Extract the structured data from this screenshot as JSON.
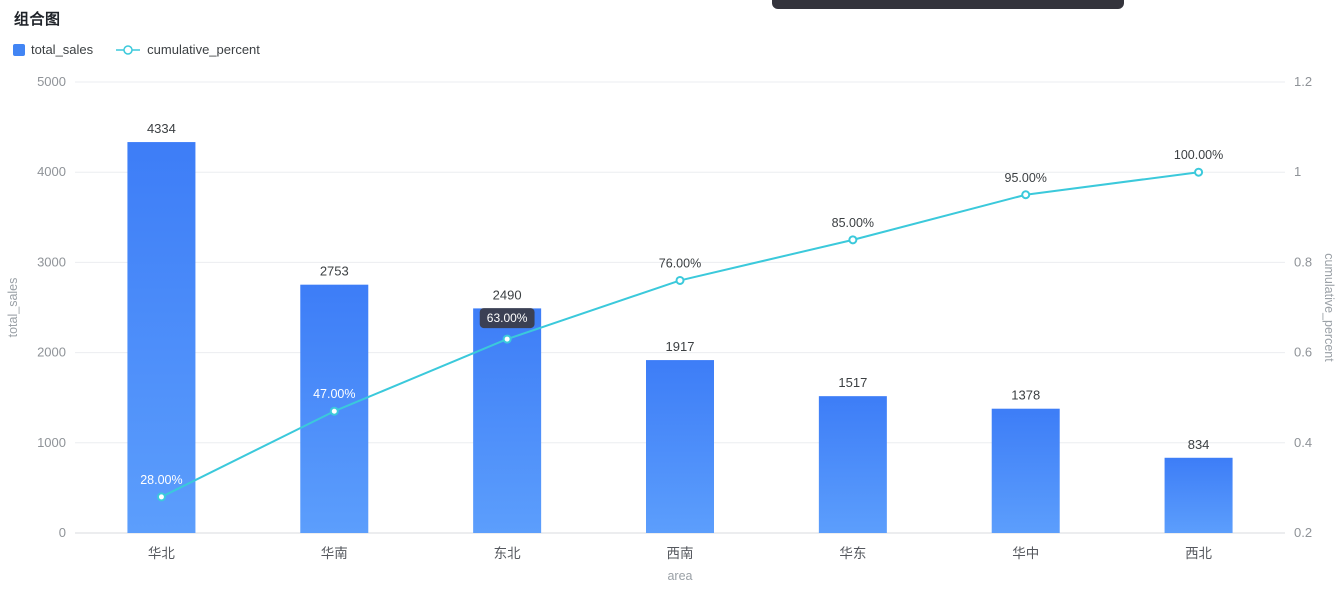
{
  "header": {
    "title": "组合图"
  },
  "legend": {
    "items": [
      {
        "label": "total_sales",
        "type": "bar",
        "color": "#4285F4"
      },
      {
        "label": "cumulative_percent",
        "type": "line",
        "color": "#3BC9DB"
      }
    ]
  },
  "chart_data": {
    "type": "combo-pareto (bar + line)",
    "categories": [
      "华北",
      "华南",
      "东北",
      "西南",
      "华东",
      "华中",
      "西北"
    ],
    "series": [
      {
        "name": "total_sales",
        "type": "bar",
        "y_axis": "left",
        "values": [
          4334,
          2753,
          2490,
          1917,
          1517,
          1378,
          834
        ],
        "value_labels": [
          "4334",
          "2753",
          "2490",
          "1917",
          "1517",
          "1378",
          "834"
        ],
        "bar_color_top": "#3D7DF7",
        "bar_color_bottom": "#5C9EFC"
      },
      {
        "name": "cumulative_percent",
        "type": "line",
        "y_axis": "right",
        "values": [
          0.28,
          0.47,
          0.63,
          0.76,
          0.85,
          0.95,
          1.0
        ],
        "point_labels": [
          "28.00%",
          "47.00%",
          "63.00%",
          "76.00%",
          "85.00%",
          "95.00%",
          "100.00%"
        ],
        "label_styles": [
          "white",
          "white",
          "pill",
          "dark",
          "dark",
          "dark",
          "dark"
        ],
        "line_color": "#3BC9DB"
      }
    ],
    "x_axis": {
      "name": "area"
    },
    "left_axis": {
      "name": "total_sales",
      "min": 0,
      "max": 5000,
      "ticks": [
        "0",
        "1000",
        "2000",
        "3000",
        "4000",
        "5000"
      ]
    },
    "right_axis": {
      "name": "cumulative_percent",
      "min": 0.2,
      "max": 1.2,
      "ticks": [
        "0.2",
        "0.4",
        "0.6",
        "0.8",
        "1",
        "1.2"
      ]
    },
    "grid": true,
    "legend_position": "top-left"
  },
  "colors": {
    "grid_line": "#ebedf0",
    "baseline": "#d9dbdf",
    "axis_text": "#8f9398",
    "category_text": "#55585e",
    "axis_title_text": "#9aa0a6",
    "value_label": "#3c4043",
    "pill_bg": "#3b3b45",
    "artifact": "#34343c"
  }
}
